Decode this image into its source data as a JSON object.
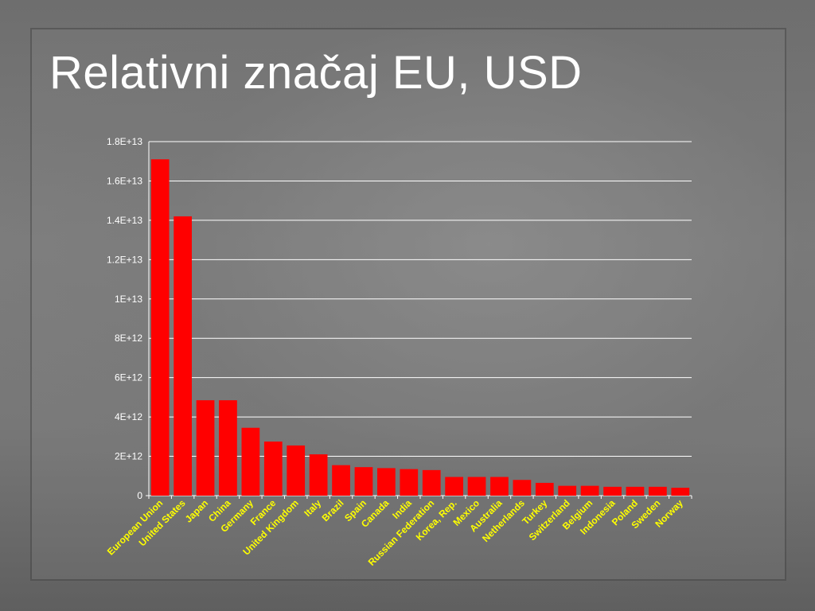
{
  "slide": {
    "title": "Relativni značaj EU, USD"
  },
  "chart_data": {
    "type": "bar",
    "title": "",
    "xlabel": "",
    "ylabel": "",
    "ylim": [
      0,
      18000000000000
    ],
    "y_ticks": [
      0,
      2000000000000,
      4000000000000,
      6000000000000,
      8000000000000,
      10000000000000,
      12000000000000,
      14000000000000,
      16000000000000,
      18000000000000
    ],
    "y_tick_labels": [
      "0",
      "2E+12",
      "4E+12",
      "6E+12",
      "8E+12",
      "1E+13",
      "1.2E+13",
      "1.4E+13",
      "1.6E+13",
      "1.8E+13"
    ],
    "grid": true,
    "bar_color": "#ff0000",
    "label_color": "#ffff00",
    "categories": [
      "European Union",
      "United States",
      "Japan",
      "China",
      "Germany",
      "France",
      "United Kingdom",
      "Italy",
      "Brazil",
      "Spain",
      "Canada",
      "India",
      "Russian Federation",
      "Korea, Rep.",
      "Mexico",
      "Australia",
      "Netherlands",
      "Turkey",
      "Switzerland",
      "Belgium",
      "Indonesia",
      "Poland",
      "Sweden",
      "Norway"
    ],
    "values": [
      17100000000000,
      14200000000000,
      4850000000000,
      4850000000000,
      3450000000000,
      2750000000000,
      2550000000000,
      2100000000000,
      1550000000000,
      1450000000000,
      1400000000000,
      1350000000000,
      1300000000000,
      950000000000,
      950000000000,
      950000000000,
      800000000000,
      650000000000,
      500000000000,
      500000000000,
      450000000000,
      450000000000,
      450000000000,
      400000000000
    ]
  }
}
